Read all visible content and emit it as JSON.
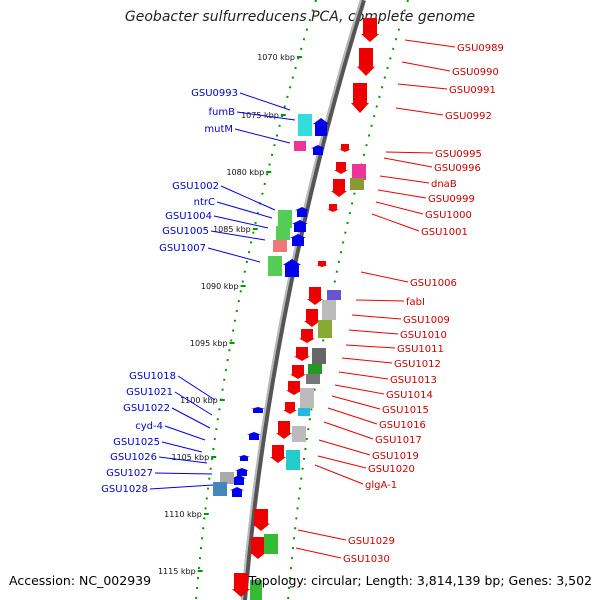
{
  "title": "Geobacter sulfurreducens PCA, complete genome",
  "footer": {
    "accession": "Accession: NC_002939",
    "summary": "Topology: circular; Length: 3,814,139 bp; Genes: 3,502"
  },
  "colors": {
    "forward_label": "#0000cc",
    "reverse_label": "#cc0000",
    "forward_arrow": "#0000ee",
    "reverse_arrow": "#ee0000",
    "backbone": "#808080",
    "tick": "#009900"
  },
  "ruler_labels": [
    "1070 kbp",
    "1075 kbp",
    "1080 kbp",
    "1085 kbp",
    "1090 kbp",
    "1095 kbp",
    "1100 kbp",
    "1105 kbp",
    "1110 kbp",
    "1115 kbp"
  ],
  "forward_genes": [
    "GSU0993",
    "fumB",
    "mutM",
    "GSU1002",
    "ntrC",
    "GSU1004",
    "GSU1005",
    "GSU1007",
    "GSU1018",
    "GSU1021",
    "GSU1022",
    "cyd-4",
    "GSU1025",
    "GSU1026",
    "GSU1027",
    "GSU1028"
  ],
  "reverse_genes": [
    "GSU0989",
    "GSU0990",
    "GSU0991",
    "GSU0992",
    "GSU0995",
    "GSU0996",
    "dnaB",
    "GSU0999",
    "GSU1000",
    "GSU1001",
    "GSU1006",
    "fabI",
    "GSU1009",
    "GSU1010",
    "GSU1011",
    "GSU1012",
    "GSU1013",
    "GSU1014",
    "GSU1015",
    "GSU1016",
    "GSU1017",
    "GSU1019",
    "GSU1020",
    "glgA-1",
    "GSU1029",
    "GSU1030"
  ]
}
